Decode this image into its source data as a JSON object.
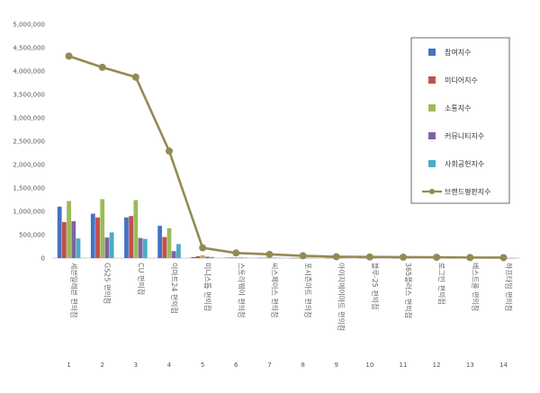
{
  "chart_data": {
    "type": "bar",
    "title": "",
    "xlabel": "",
    "ylabel": "",
    "ylim": [
      0,
      5000000
    ],
    "yticks": [
      "0",
      "500,000",
      "1,000,000",
      "1,500,000",
      "2,000,000",
      "2,500,000",
      "3,000,000",
      "3,500,000",
      "4,000,000",
      "4,500,000",
      "5,000,000"
    ],
    "x": [
      "1",
      "2",
      "3",
      "4",
      "5",
      "6",
      "7",
      "8",
      "9",
      "10",
      "11",
      "12",
      "13",
      "14"
    ],
    "categories": [
      "세븐일레븐 편의점",
      "GS25 편의점",
      "CU 편의점",
      "이마트24 편의점",
      "미니스톱 편의점",
      "스토리웨이 편의점",
      "씨스페이스 편의점",
      "포시즌마트 편의점",
      "아이지에이마트 편의점",
      "블루-25 편의점",
      "365플러스 편의점",
      "로그인 편의점",
      "베스트올 편의점",
      "하프타임 편의점"
    ],
    "grid": false,
    "legend": "right-inside",
    "series": [
      {
        "name": "참여지수",
        "kind": "bar",
        "color": "#4472C4",
        "values": [
          1100000,
          950000,
          870000,
          690000,
          20000,
          8000,
          5000,
          3000,
          2000,
          2000,
          1500,
          1500,
          1000,
          1000
        ]
      },
      {
        "name": "미디어지수",
        "kind": "bar",
        "color": "#C0504D",
        "values": [
          770000,
          870000,
          900000,
          450000,
          40000,
          12000,
          8000,
          5000,
          4000,
          3000,
          3000,
          2000,
          1500,
          1000
        ]
      },
      {
        "name": "소통지수",
        "kind": "bar",
        "color": "#9BBB59",
        "values": [
          1220000,
          1260000,
          1240000,
          640000,
          60000,
          15000,
          10000,
          6000,
          5000,
          4000,
          3000,
          3000,
          2000,
          1500
        ]
      },
      {
        "name": "커뮤니티지수",
        "kind": "bar",
        "color": "#8064A2",
        "values": [
          790000,
          440000,
          430000,
          150000,
          30000,
          10000,
          7000,
          4000,
          3000,
          2500,
          2000,
          2000,
          1500,
          1000
        ]
      },
      {
        "name": "사회공헌지수",
        "kind": "bar",
        "color": "#4BACC6",
        "values": [
          420000,
          550000,
          410000,
          300000,
          25000,
          9000,
          6000,
          4000,
          3000,
          2500,
          2000,
          2000,
          1500,
          1000
        ]
      },
      {
        "name": "브랜드평판지수",
        "kind": "line",
        "color": "#948A54",
        "values": [
          4320000,
          4080000,
          3870000,
          2290000,
          220000,
          110000,
          80000,
          50000,
          30000,
          25000,
          20000,
          18000,
          12000,
          10000
        ]
      }
    ]
  }
}
